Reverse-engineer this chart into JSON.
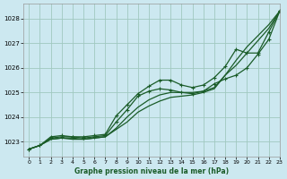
{
  "title": "Graphe pression niveau de la mer (hPa)",
  "bg_color": "#cce8f0",
  "grid_color": "#a0c8c0",
  "line_color": "#1a5c28",
  "xlim": [
    -0.5,
    23
  ],
  "ylim": [
    1022.4,
    1028.6
  ],
  "yticks": [
    1023,
    1024,
    1025,
    1026,
    1027,
    1028
  ],
  "xticks": [
    0,
    1,
    2,
    3,
    4,
    5,
    6,
    7,
    8,
    9,
    10,
    11,
    12,
    13,
    14,
    15,
    16,
    17,
    18,
    19,
    20,
    21,
    22,
    23
  ],
  "series": [
    {
      "x": [
        0,
        1,
        2,
        3,
        4,
        5,
        6,
        7,
        8,
        9,
        10,
        11,
        12,
        13,
        14,
        15,
        16,
        17,
        18,
        19,
        20,
        21,
        22,
        23
      ],
      "y": [
        1022.7,
        1022.85,
        1023.1,
        1023.15,
        1023.15,
        1023.1,
        1023.15,
        1023.2,
        1023.5,
        1023.8,
        1024.2,
        1024.45,
        1024.65,
        1024.8,
        1024.85,
        1024.9,
        1025.0,
        1025.15,
        1025.7,
        1026.3,
        1026.85,
        1027.3,
        1027.75,
        1028.3
      ],
      "marker": false,
      "lw": 0.9
    },
    {
      "x": [
        0,
        1,
        2,
        3,
        4,
        5,
        6,
        7,
        8,
        9,
        10,
        11,
        12,
        13,
        14,
        15,
        16,
        17,
        18,
        19,
        20,
        21,
        22,
        23
      ],
      "y": [
        1022.7,
        1022.85,
        1023.1,
        1023.15,
        1023.1,
        1023.1,
        1023.15,
        1023.2,
        1023.55,
        1024.0,
        1024.4,
        1024.7,
        1024.9,
        1025.0,
        1025.0,
        1025.0,
        1025.05,
        1025.2,
        1025.7,
        1026.1,
        1026.6,
        1027.1,
        1027.6,
        1028.3
      ],
      "marker": false,
      "lw": 0.9
    },
    {
      "x": [
        0,
        1,
        2,
        3,
        4,
        5,
        6,
        7,
        8,
        9,
        10,
        11,
        12,
        13,
        14,
        15,
        16,
        17,
        18,
        19,
        20,
        21,
        22,
        23
      ],
      "y": [
        1022.7,
        1022.85,
        1023.15,
        1023.2,
        1023.2,
        1023.15,
        1023.2,
        1023.25,
        1023.8,
        1024.3,
        1024.85,
        1025.05,
        1025.15,
        1025.1,
        1025.0,
        1024.95,
        1025.05,
        1025.35,
        1025.55,
        1025.7,
        1026.0,
        1026.55,
        1027.15,
        1028.3
      ],
      "marker": true,
      "lw": 0.9
    },
    {
      "x": [
        0,
        1,
        2,
        3,
        4,
        5,
        6,
        7,
        8,
        9,
        10,
        11,
        12,
        13,
        14,
        15,
        16,
        17,
        18,
        19,
        20,
        21,
        22,
        23
      ],
      "y": [
        1022.7,
        1022.85,
        1023.2,
        1023.25,
        1023.2,
        1023.2,
        1023.25,
        1023.3,
        1024.05,
        1024.5,
        1024.95,
        1025.25,
        1025.5,
        1025.5,
        1025.3,
        1025.2,
        1025.3,
        1025.6,
        1026.05,
        1026.75,
        1026.6,
        1026.6,
        1027.45,
        1028.3
      ],
      "marker": true,
      "lw": 0.9
    }
  ]
}
